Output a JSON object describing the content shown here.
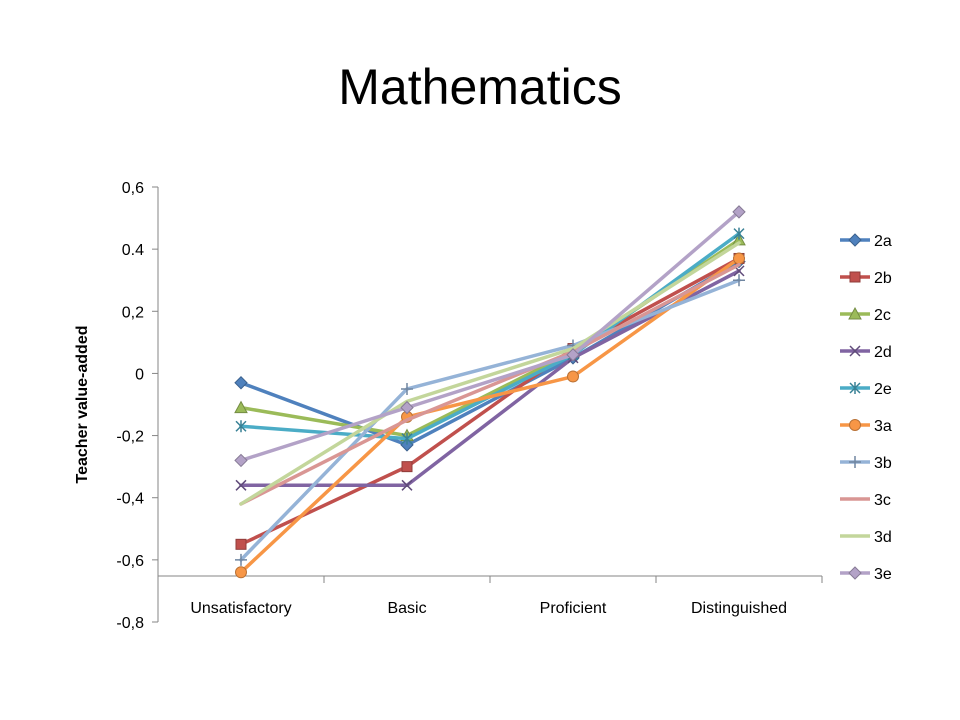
{
  "chart_data": {
    "type": "line",
    "title": "Mathematics",
    "xlabel": "",
    "ylabel": "Teacher value-added",
    "categories": [
      "Unsatisfactory",
      "Basic",
      "Proficient",
      "Distinguished"
    ],
    "yticks": [
      "0,6",
      "0.4",
      "0,2",
      "0",
      "-0,2",
      "-0,4",
      "-0,6",
      "-0,8"
    ],
    "ylim": [
      -0.8,
      0.6
    ],
    "grid": false,
    "legend": "right",
    "series": [
      {
        "name": "2a",
        "color": "#4F81BD",
        "marker": "diamond",
        "values": [
          -0.03,
          -0.23,
          0.05,
          0.36
        ]
      },
      {
        "name": "2b",
        "color": "#C0504D",
        "marker": "square",
        "values": [
          -0.55,
          -0.3,
          0.08,
          0.37
        ]
      },
      {
        "name": "2c",
        "color": "#9BBB59",
        "marker": "triangle",
        "values": [
          -0.11,
          -0.2,
          0.07,
          0.43
        ]
      },
      {
        "name": "2d",
        "color": "#8064A2",
        "marker": "x",
        "values": [
          -0.36,
          -0.36,
          0.05,
          0.33
        ]
      },
      {
        "name": "2e",
        "color": "#4BACC6",
        "marker": "star",
        "values": [
          -0.17,
          -0.21,
          0.06,
          0.45
        ]
      },
      {
        "name": "3a",
        "color": "#F79646",
        "marker": "circle",
        "values": [
          -0.64,
          -0.14,
          -0.01,
          0.37
        ]
      },
      {
        "name": "3b",
        "color": "#95B3D7",
        "marker": "plus",
        "values": [
          -0.6,
          -0.05,
          0.09,
          0.3
        ]
      },
      {
        "name": "3c",
        "color": "#D99694",
        "marker": "none",
        "values": [
          -0.42,
          -0.15,
          0.07,
          0.35
        ]
      },
      {
        "name": "3d",
        "color": "#C3D69B",
        "marker": "none",
        "values": [
          -0.42,
          -0.09,
          0.08,
          0.42
        ]
      },
      {
        "name": "3e",
        "color": "#B3A2C7",
        "marker": "diamond",
        "values": [
          -0.28,
          -0.11,
          0.06,
          0.52
        ]
      }
    ]
  }
}
